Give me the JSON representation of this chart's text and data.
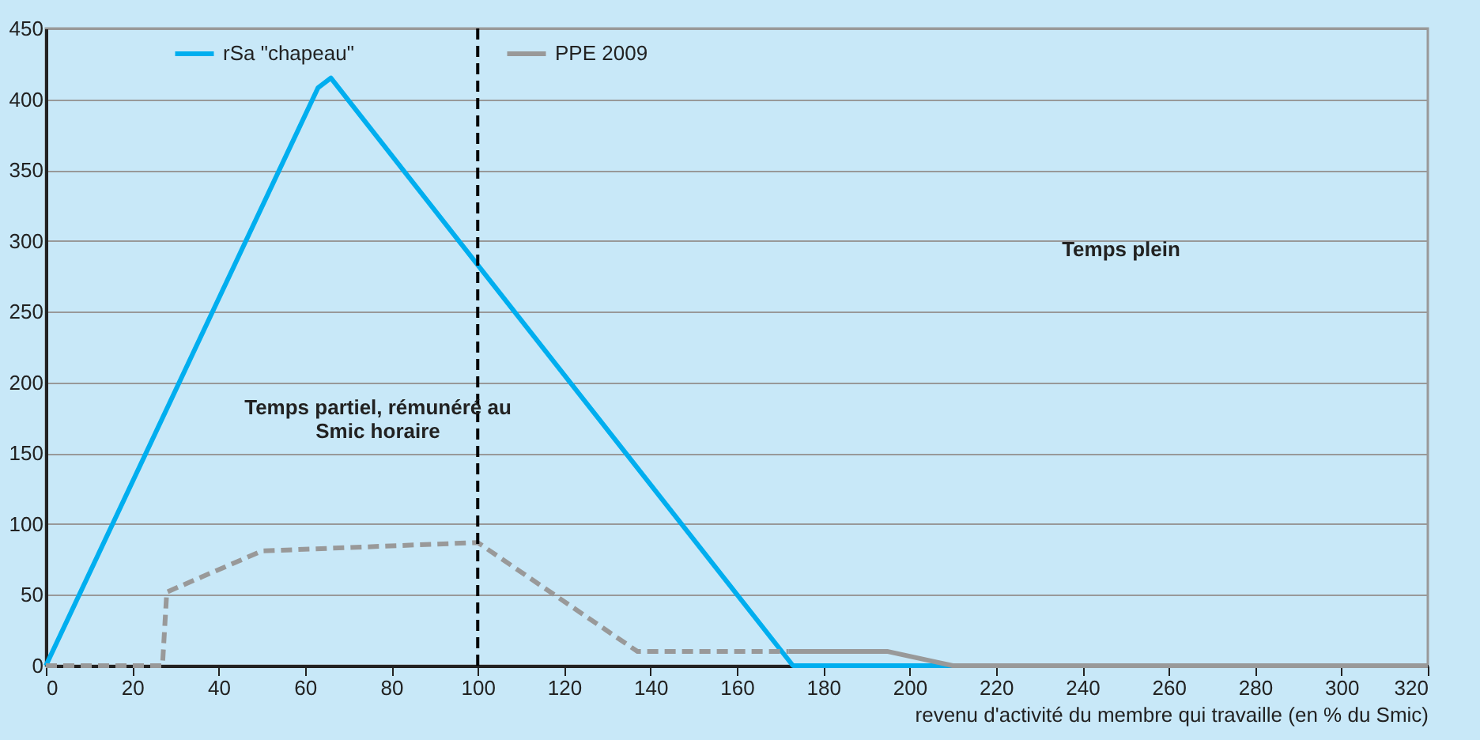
{
  "chart_data": {
    "type": "line",
    "xlabel": "revenu d'activité du membre qui travaille (en % du Smic)",
    "xlim": [
      0,
      320
    ],
    "xticks": [
      0,
      20,
      40,
      60,
      80,
      100,
      120,
      140,
      160,
      180,
      200,
      220,
      240,
      260,
      280,
      300,
      320
    ],
    "ylim": [
      0,
      450
    ],
    "yticks": [
      0,
      50,
      100,
      150,
      200,
      250,
      300,
      350,
      400,
      450
    ],
    "series": [
      {
        "name": "rSa \"chapeau\"",
        "color": "#00aeef",
        "line_style": "solid",
        "x": [
          0,
          63,
          66,
          100,
          173,
          320
        ],
        "values": [
          0,
          408,
          415,
          283,
          0,
          0
        ]
      },
      {
        "color": "#999999",
        "line_style": "dashed",
        "x": [
          0,
          27,
          28,
          50,
          100,
          137,
          172
        ],
        "values": [
          0,
          0,
          52,
          81,
          87,
          10,
          10
        ]
      },
      {
        "name": "PPE 2009",
        "color": "#999999",
        "line_style": "solid",
        "x": [
          172,
          195,
          207,
          210,
          320
        ],
        "values": [
          10,
          10,
          2,
          0,
          0
        ]
      }
    ],
    "ref_lines": [
      {
        "axis": "x",
        "value": 100,
        "color": "#000000",
        "line_style": "dashed"
      }
    ],
    "annotations": [
      "Temps partiel, rémunéré au\nSmic horaire",
      "Temps plein"
    ],
    "grid": "y",
    "legend": "top",
    "marker": "none"
  }
}
